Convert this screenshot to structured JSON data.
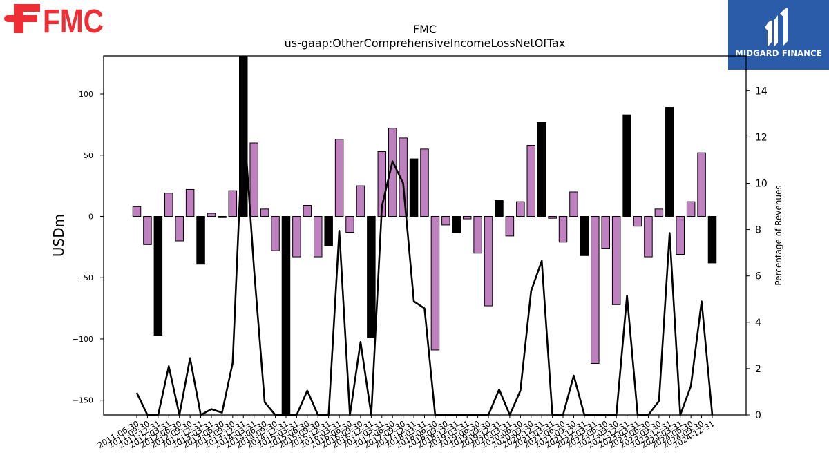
{
  "header": {
    "company": "FMC",
    "subtitle": "us-gaap:OtherComprehensiveIncomeLossNetOfTax",
    "logo_text": "FMC",
    "brand_name": "MIDGARD FINANCE"
  },
  "colors": {
    "positive_bar": "#bf80bf",
    "negative_bar": "#bf80bf",
    "highlight_bar": "#000000",
    "line": "#000000",
    "logo_red": "#ee2e34",
    "brand_blue": "#2a5caa"
  },
  "chart_data": {
    "type": "bar",
    "title": "FMC",
    "subtitle": "us-gaap:OtherComprehensiveIncomeLossNetOfTax",
    "ylabel": "USDm",
    "y2label": "Percentage of Revenues",
    "ylim": [
      -162,
      131
    ],
    "y2lim": [
      0,
      15.5
    ],
    "yticks": [
      -150,
      -100,
      -50,
      0,
      50,
      100
    ],
    "y2ticks": [
      0,
      2,
      4,
      6,
      8,
      10,
      12,
      14
    ],
    "categories": [
      "2011-06-30",
      "2011-09-30",
      "2011-12-31",
      "2012-03-31",
      "2012-06-30",
      "2012-09-30",
      "2012-12-31",
      "2013-03-31",
      "2013-06-30",
      "2013-09-30",
      "2013-12-31",
      "2014-03-31",
      "2014-06-30",
      "2014-09-30",
      "2014-12-31",
      "2015-03-31",
      "2015-06-30",
      "2015-09-30",
      "2015-12-31",
      "2016-03-31",
      "2016-06-30",
      "2016-09-30",
      "2016-12-31",
      "2017-03-31",
      "2017-06-30",
      "2017-09-30",
      "2017-12-31",
      "2018-03-31",
      "2018-06-30",
      "2018-09-30",
      "2018-12-31",
      "2019-03-31",
      "2019-06-30",
      "2019-09-30",
      "2019-12-31",
      "2020-03-31",
      "2020-06-30",
      "2020-09-30",
      "2020-12-31",
      "2021-03-31",
      "2021-06-30",
      "2021-09-30",
      "2021-12-31",
      "2022-03-31",
      "2022-06-30",
      "2022-09-30",
      "2022-12-31",
      "2023-03-31",
      "2023-06-30",
      "2023-09-30",
      "2023-12-31",
      "2024-03-31",
      "2024-06-30",
      "2024-09-30",
      "2024-12-31"
    ],
    "values": [
      8,
      -23,
      -97,
      19,
      -20,
      22,
      -39,
      2.5,
      -1,
      21,
      131,
      60,
      6,
      -28,
      -162,
      -33,
      9,
      -33,
      -24,
      63,
      -13,
      25,
      -99,
      53,
      72,
      64,
      47,
      55,
      -109,
      -7,
      -13,
      -2,
      -30,
      -73,
      13,
      -16,
      12,
      58,
      77,
      -1.5,
      -21,
      20,
      -32,
      -120,
      -26,
      -72,
      83,
      -8,
      -33,
      6,
      89,
      -31,
      12,
      52,
      -38
    ],
    "highlight": [
      false,
      false,
      true,
      false,
      false,
      false,
      true,
      false,
      true,
      false,
      true,
      false,
      false,
      false,
      true,
      false,
      false,
      false,
      true,
      false,
      false,
      false,
      true,
      false,
      false,
      false,
      true,
      false,
      false,
      false,
      true,
      false,
      false,
      false,
      true,
      false,
      false,
      false,
      true,
      false,
      false,
      false,
      true,
      false,
      false,
      false,
      true,
      false,
      false,
      false,
      true,
      false,
      false,
      false,
      true
    ],
    "line_values": [
      0.95,
      0,
      0,
      2.1,
      0,
      2.45,
      0,
      0.25,
      0.1,
      2.25,
      13.0,
      6.3,
      0.55,
      0,
      0,
      0,
      1.05,
      0,
      0,
      7.95,
      0,
      3.15,
      0,
      9.0,
      10.95,
      10.0,
      4.9,
      4.6,
      0,
      0,
      0,
      0,
      0,
      0,
      1.1,
      0,
      1.05,
      5.35,
      6.65,
      0,
      0,
      1.7,
      0,
      0,
      0,
      0,
      5.15,
      0,
      0,
      0.6,
      7.85,
      0,
      1.25,
      4.9,
      0
    ]
  }
}
